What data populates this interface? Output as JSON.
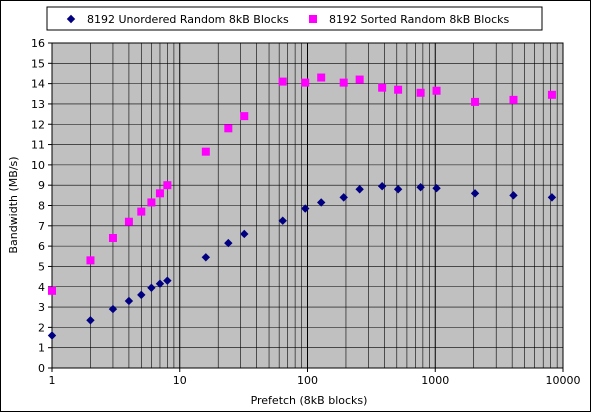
{
  "chart_data": {
    "type": "scatter",
    "xlabel": "Prefetch (8kB blocks)",
    "ylabel": "Bandwidth (MB/s)",
    "xscale": "log",
    "xlim": [
      1,
      10000
    ],
    "ylim": [
      0,
      16
    ],
    "x_ticks": [
      "1",
      "10",
      "100",
      "1000",
      "10000"
    ],
    "y_ticks": [
      "0",
      "1",
      "2",
      "3",
      "4",
      "5",
      "6",
      "7",
      "8",
      "9",
      "10",
      "11",
      "12",
      "13",
      "14",
      "15",
      "16"
    ],
    "grid": true,
    "legend_position": "top",
    "plot_background": "#c0c0c0",
    "series": [
      {
        "name": "8192 Unordered Random 8kB Blocks",
        "marker": "diamond",
        "color": "#000080",
        "points": [
          [
            1,
            1.6
          ],
          [
            2,
            2.35
          ],
          [
            3,
            2.9
          ],
          [
            4,
            3.3
          ],
          [
            5,
            3.6
          ],
          [
            6,
            3.95
          ],
          [
            7,
            4.15
          ],
          [
            8,
            4.3
          ],
          [
            16,
            5.45
          ],
          [
            24,
            6.15
          ],
          [
            32,
            6.6
          ],
          [
            64,
            7.25
          ],
          [
            96,
            7.85
          ],
          [
            128,
            8.15
          ],
          [
            192,
            8.4
          ],
          [
            256,
            8.8
          ],
          [
            384,
            8.95
          ],
          [
            512,
            8.8
          ],
          [
            768,
            8.9
          ],
          [
            1024,
            8.85
          ],
          [
            2048,
            8.6
          ],
          [
            4096,
            8.5
          ],
          [
            8192,
            8.4
          ]
        ]
      },
      {
        "name": "8192 Sorted Random 8kB Blocks",
        "marker": "square",
        "color": "#ff00ff",
        "points": [
          [
            1,
            3.8
          ],
          [
            2,
            5.3
          ],
          [
            3,
            6.4
          ],
          [
            4,
            7.2
          ],
          [
            5,
            7.7
          ],
          [
            6,
            8.15
          ],
          [
            7,
            8.6
          ],
          [
            8,
            9.0
          ],
          [
            16,
            10.65
          ],
          [
            24,
            11.8
          ],
          [
            32,
            12.4
          ],
          [
            64,
            14.1
          ],
          [
            96,
            14.05
          ],
          [
            128,
            14.3
          ],
          [
            192,
            14.05
          ],
          [
            256,
            14.2
          ],
          [
            384,
            13.8
          ],
          [
            512,
            13.7
          ],
          [
            768,
            13.55
          ],
          [
            1024,
            13.65
          ],
          [
            2048,
            13.1
          ],
          [
            4096,
            13.2
          ],
          [
            8192,
            13.45
          ]
        ]
      }
    ]
  }
}
